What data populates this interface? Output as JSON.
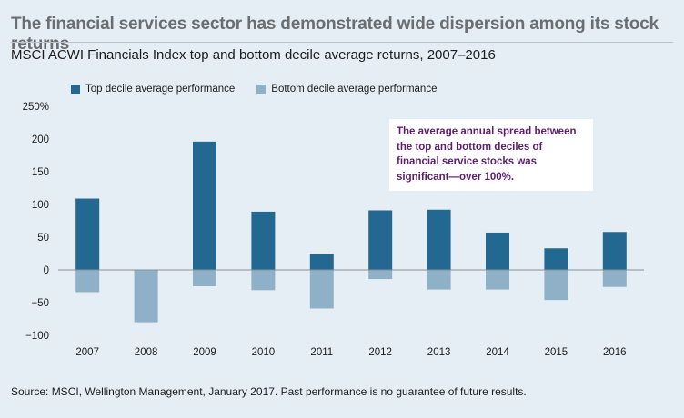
{
  "title": "The financial services sector has demonstrated wide dispersion among its stock returns",
  "subtitle": "MSCI ACWI Financials Index top and bottom decile average returns, 2007–2016",
  "source": "Source: MSCI, Wellington Management, January 2017. Past performance is no guarantee of future results.",
  "annotation": "The average annual spread between the top and bottom deciles of financial service stocks was significant—over 100%.",
  "colors": {
    "top": "#236890",
    "bottom": "#8fb1c8",
    "annotation_text": "#5a1e6b"
  },
  "chart_data": {
    "type": "bar",
    "categories": [
      "2007",
      "2008",
      "2009",
      "2010",
      "2011",
      "2012",
      "2013",
      "2014",
      "2015",
      "2016"
    ],
    "series": [
      {
        "name": "Top decile average performance",
        "values": [
          109,
          -3,
          196,
          89,
          24,
          91,
          92,
          57,
          33,
          58
        ]
      },
      {
        "name": "Bottom decile average performance",
        "values": [
          -34,
          -80,
          -25,
          -31,
          -59,
          -14,
          -30,
          -30,
          -46,
          -26
        ]
      }
    ],
    "ylim": [
      -100,
      250
    ],
    "yticks": [
      {
        "value": 250,
        "label": "250%"
      },
      {
        "value": 200,
        "label": "200"
      },
      {
        "value": 150,
        "label": "150"
      },
      {
        "value": 100,
        "label": "100"
      },
      {
        "value": 50,
        "label": "50"
      },
      {
        "value": 0,
        "label": "0"
      },
      {
        "value": -50,
        "label": "−50"
      },
      {
        "value": -100,
        "label": "−100"
      }
    ],
    "legend_position": "top-left",
    "grid": false
  }
}
